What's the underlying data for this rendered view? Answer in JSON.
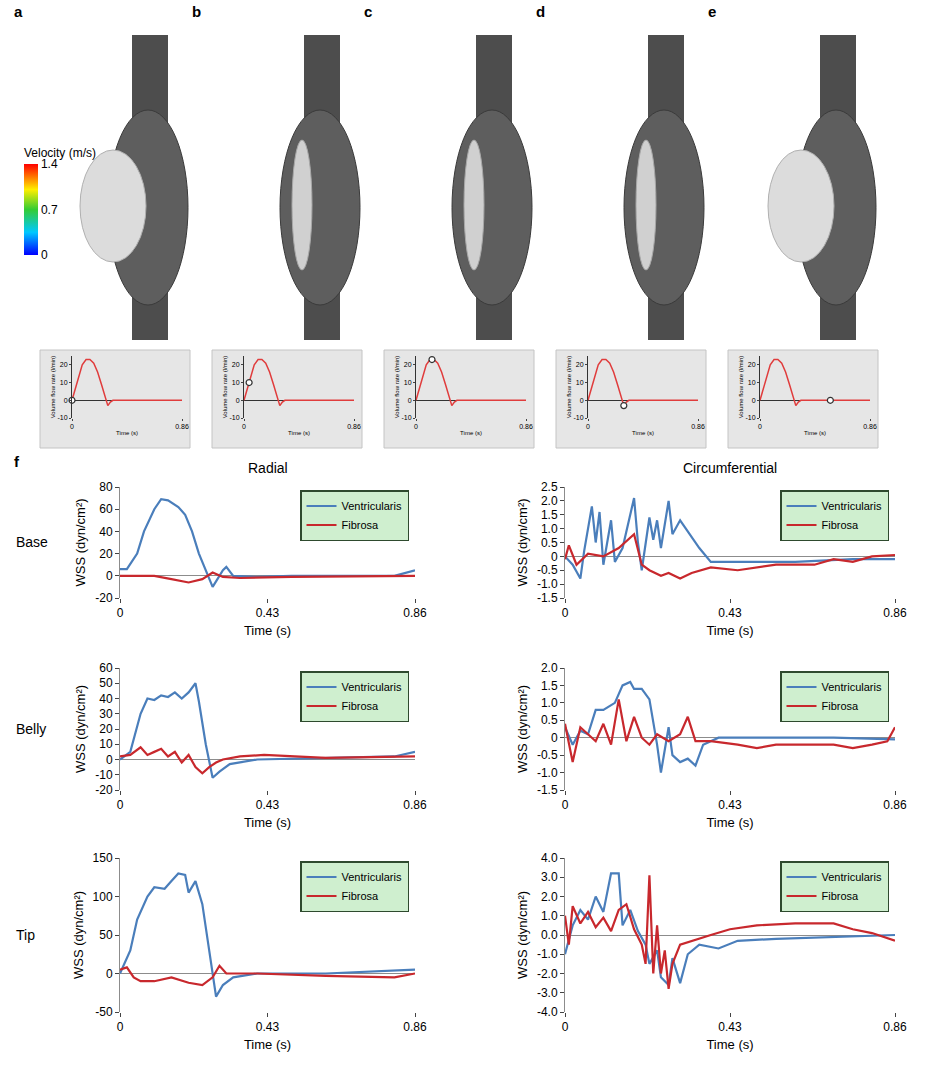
{
  "panel_labels": [
    "a",
    "b",
    "c",
    "d",
    "e",
    "f"
  ],
  "velocity_colorbar": {
    "title": "Velocity (m/s)",
    "range": [
      0,
      1.4
    ],
    "ticks": [
      0,
      0.7,
      1.4
    ]
  },
  "chart_data": [
    {
      "type": "line",
      "x_label": "Time (s)",
      "y_label": "Volume flow rate (l/min)",
      "xlim": [
        0,
        0.86
      ],
      "xticks": [
        0,
        0.86
      ],
      "ylim": [
        -10,
        25
      ],
      "yticks": [
        -10,
        0,
        10,
        20
      ],
      "grid": false,
      "series": [
        {
          "color": "#e03c3c",
          "x": [
            0,
            0.02,
            0.05,
            0.08,
            0.11,
            0.14,
            0.17,
            0.2,
            0.23,
            0.26,
            0.28,
            0.3,
            0.32,
            0.86
          ],
          "values": [
            0,
            5,
            13,
            20,
            23,
            23,
            21,
            16,
            9,
            2,
            -3,
            -1,
            0,
            0
          ]
        }
      ],
      "marker_point": {
        "x": 0,
        "value": 0
      }
    },
    {
      "type": "line",
      "x_label": "Time (s)",
      "y_label": "Volume flow rate (l/min)",
      "xlim": [
        0,
        0.86
      ],
      "xticks": [
        0,
        0.86
      ],
      "ylim": [
        -10,
        25
      ],
      "yticks": [
        -10,
        0,
        10,
        20
      ],
      "grid": false,
      "series": [
        {
          "color": "#e03c3c",
          "x": [
            0,
            0.02,
            0.05,
            0.08,
            0.11,
            0.14,
            0.17,
            0.2,
            0.23,
            0.26,
            0.28,
            0.3,
            0.32,
            0.86
          ],
          "values": [
            0,
            5,
            13,
            20,
            23,
            23,
            21,
            16,
            9,
            2,
            -3,
            -1,
            0,
            0
          ]
        }
      ],
      "marker_point": {
        "x": 0.04,
        "value": 10
      }
    },
    {
      "type": "line",
      "x_label": "Time (s)",
      "y_label": "Volume flow rate (l/min)",
      "xlim": [
        0,
        0.86
      ],
      "xticks": [
        0,
        0.86
      ],
      "ylim": [
        -10,
        25
      ],
      "yticks": [
        -10,
        0,
        10,
        20
      ],
      "grid": false,
      "series": [
        {
          "color": "#e03c3c",
          "x": [
            0,
            0.02,
            0.05,
            0.08,
            0.11,
            0.14,
            0.17,
            0.2,
            0.23,
            0.26,
            0.28,
            0.3,
            0.32,
            0.86
          ],
          "values": [
            0,
            5,
            13,
            20,
            23,
            23,
            21,
            16,
            9,
            2,
            -3,
            -1,
            0,
            0
          ]
        }
      ],
      "marker_point": {
        "x": 0.125,
        "value": 23
      }
    },
    {
      "type": "line",
      "x_label": "Time (s)",
      "y_label": "Volume flow rate (l/min)",
      "xlim": [
        0,
        0.86
      ],
      "xticks": [
        0,
        0.86
      ],
      "ylim": [
        -10,
        25
      ],
      "yticks": [
        -10,
        0,
        10,
        20
      ],
      "grid": false,
      "series": [
        {
          "color": "#e03c3c",
          "x": [
            0,
            0.02,
            0.05,
            0.08,
            0.11,
            0.14,
            0.17,
            0.2,
            0.23,
            0.26,
            0.28,
            0.3,
            0.32,
            0.86
          ],
          "values": [
            0,
            5,
            13,
            20,
            23,
            23,
            21,
            16,
            9,
            2,
            -3,
            -1,
            0,
            0
          ]
        }
      ],
      "marker_point": {
        "x": 0.28,
        "value": -3
      }
    },
    {
      "type": "line",
      "x_label": "Time (s)",
      "y_label": "Volume flow rate (l/min)",
      "xlim": [
        0,
        0.86
      ],
      "xticks": [
        0,
        0.86
      ],
      "ylim": [
        -10,
        25
      ],
      "yticks": [
        -10,
        0,
        10,
        20
      ],
      "grid": false,
      "series": [
        {
          "color": "#e03c3c",
          "x": [
            0,
            0.02,
            0.05,
            0.08,
            0.11,
            0.14,
            0.17,
            0.2,
            0.23,
            0.26,
            0.28,
            0.3,
            0.32,
            0.86
          ],
          "values": [
            0,
            5,
            13,
            20,
            23,
            23,
            21,
            16,
            9,
            2,
            -3,
            -1,
            0,
            0
          ]
        }
      ],
      "marker_point": {
        "x": 0.55,
        "value": 0
      }
    },
    {
      "type": "line",
      "title": "Radial",
      "row_label": "Base",
      "x_label": "Time (s)",
      "y_label": "WSS (dyn/cm²)",
      "xlim": [
        0,
        0.86
      ],
      "xticks": [
        0,
        0.43,
        0.86
      ],
      "ylim": [
        -20,
        80
      ],
      "yticks": [
        -20,
        0,
        20,
        40,
        60,
        80
      ],
      "grid": false,
      "legend": "upper right",
      "series": [
        {
          "name": "Ventricularis",
          "color": "#4a7ebb",
          "x": [
            0,
            0.02,
            0.05,
            0.07,
            0.1,
            0.12,
            0.14,
            0.17,
            0.19,
            0.21,
            0.23,
            0.25,
            0.27,
            0.28,
            0.3,
            0.31,
            0.33,
            0.4,
            0.5,
            0.8,
            0.86
          ],
          "values": [
            6,
            6,
            20,
            40,
            60,
            69,
            68,
            62,
            55,
            40,
            20,
            5,
            -10,
            -5,
            5,
            8,
            0,
            -1,
            0,
            0,
            5
          ]
        },
        {
          "name": "Fibrosa",
          "color": "#c8282d",
          "x": [
            0,
            0.1,
            0.15,
            0.2,
            0.24,
            0.27,
            0.3,
            0.35,
            0.5,
            0.86
          ],
          "values": [
            0,
            0,
            -3,
            -6,
            -3,
            3,
            -1,
            -2,
            -1,
            0
          ]
        }
      ]
    },
    {
      "type": "line",
      "title": "Circumferential",
      "x_label": "Time (s)",
      "y_label": "WSS (dyn/cm²)",
      "xlim": [
        0,
        0.86
      ],
      "xticks": [
        0,
        0.43,
        0.86
      ],
      "ylim": [
        -1.5,
        2.5
      ],
      "yticks": [
        -1.5,
        {
          "value": -1,
          "label": "-1.0"
        },
        -0.5,
        0,
        0.5,
        {
          "value": 1,
          "label": "1.0"
        },
        1.5,
        {
          "value": 2,
          "label": "2.0"
        },
        2.5
      ],
      "grid": false,
      "legend": "upper right",
      "series": [
        {
          "name": "Ventricularis",
          "color": "#4a7ebb",
          "x": [
            0,
            0.02,
            0.04,
            0.05,
            0.07,
            0.08,
            0.09,
            0.1,
            0.12,
            0.13,
            0.15,
            0.17,
            0.18,
            0.19,
            0.2,
            0.22,
            0.23,
            0.24,
            0.25,
            0.27,
            0.28,
            0.3,
            0.32,
            0.35,
            0.38,
            0.45,
            0.6,
            0.75,
            0.86
          ],
          "values": [
            0,
            -0.3,
            -0.8,
            0.2,
            1.8,
            0.5,
            1.6,
            -0.3,
            1.3,
            -0.2,
            0.3,
            1.5,
            2.1,
            0.5,
            -0.5,
            1.4,
            0.6,
            1.3,
            0.3,
            2.0,
            0.8,
            1.3,
            0.9,
            0.3,
            -0.2,
            -0.2,
            -0.2,
            -0.1,
            -0.1
          ]
        },
        {
          "name": "Fibrosa",
          "color": "#c8282d",
          "x": [
            0,
            0.01,
            0.03,
            0.06,
            0.1,
            0.14,
            0.18,
            0.2,
            0.22,
            0.25,
            0.27,
            0.3,
            0.33,
            0.38,
            0.45,
            0.5,
            0.55,
            0.65,
            0.7,
            0.75,
            0.8,
            0.86
          ],
          "values": [
            -0.1,
            0.4,
            -0.3,
            0.1,
            0.0,
            0.3,
            0.8,
            -0.3,
            -0.5,
            -0.7,
            -0.6,
            -0.8,
            -0.6,
            -0.4,
            -0.5,
            -0.4,
            -0.3,
            -0.3,
            -0.1,
            -0.2,
            0.0,
            0.05
          ]
        }
      ]
    },
    {
      "type": "line",
      "row_label": "Belly",
      "x_label": "Time (s)",
      "y_label": "WSS (dyn/cm²)",
      "xlim": [
        0,
        0.86
      ],
      "xticks": [
        0,
        0.43,
        0.86
      ],
      "ylim": [
        -20,
        60
      ],
      "yticks": [
        -20,
        -10,
        0,
        10,
        20,
        30,
        40,
        50,
        60
      ],
      "grid": false,
      "legend": "upper right",
      "series": [
        {
          "name": "Ventricularis",
          "color": "#4a7ebb",
          "x": [
            0,
            0.03,
            0.06,
            0.08,
            0.1,
            0.12,
            0.14,
            0.16,
            0.18,
            0.2,
            0.22,
            0.23,
            0.25,
            0.27,
            0.29,
            0.32,
            0.4,
            0.6,
            0.8,
            0.86
          ],
          "values": [
            0,
            5,
            30,
            40,
            39,
            42,
            41,
            44,
            40,
            44,
            50,
            38,
            10,
            -12,
            -8,
            -3,
            0,
            1,
            2,
            5
          ]
        },
        {
          "name": "Fibrosa",
          "color": "#c8282d",
          "x": [
            0,
            0.03,
            0.06,
            0.08,
            0.1,
            0.12,
            0.14,
            0.16,
            0.18,
            0.2,
            0.22,
            0.24,
            0.26,
            0.28,
            0.3,
            0.35,
            0.42,
            0.5,
            0.6,
            0.86
          ],
          "values": [
            2,
            3,
            8,
            3,
            5,
            7,
            2,
            5,
            -2,
            3,
            -5,
            -9,
            -5,
            -2,
            0,
            2,
            3,
            2,
            1,
            2
          ]
        }
      ]
    },
    {
      "type": "line",
      "x_label": "Time (s)",
      "y_label": "WSS (dyn/cm²)",
      "xlim": [
        0,
        0.86
      ],
      "xticks": [
        0,
        0.43,
        0.86
      ],
      "ylim": [
        -1.5,
        2
      ],
      "yticks": [
        -1.5,
        {
          "value": -1,
          "label": "-1.0"
        },
        -0.5,
        0,
        0.5,
        {
          "value": 1,
          "label": "1.0"
        },
        1.5,
        {
          "value": 2,
          "label": "2.0"
        }
      ],
      "grid": false,
      "legend": "upper right",
      "series": [
        {
          "name": "Ventricularis",
          "color": "#4a7ebb",
          "x": [
            0,
            0.02,
            0.04,
            0.06,
            0.08,
            0.1,
            0.13,
            0.15,
            0.17,
            0.18,
            0.2,
            0.22,
            0.24,
            0.25,
            0.27,
            0.28,
            0.3,
            0.32,
            0.34,
            0.36,
            0.4,
            0.5,
            0.7,
            0.86
          ],
          "values": [
            0.3,
            -0.2,
            0.2,
            0.1,
            0.8,
            0.8,
            1.0,
            1.5,
            1.6,
            1.4,
            1.4,
            1.1,
            -0.2,
            -1.0,
            0.3,
            -0.5,
            -0.7,
            -0.6,
            -0.8,
            -0.2,
            0.0,
            0.0,
            0.0,
            -0.05
          ]
        },
        {
          "name": "Fibrosa",
          "color": "#c8282d",
          "x": [
            0,
            0.02,
            0.04,
            0.06,
            0.08,
            0.1,
            0.12,
            0.14,
            0.16,
            0.18,
            0.2,
            0.22,
            0.24,
            0.27,
            0.3,
            0.32,
            0.34,
            0.38,
            0.45,
            0.5,
            0.55,
            0.7,
            0.75,
            0.8,
            0.84,
            0.86
          ],
          "values": [
            0.4,
            -0.7,
            0.3,
            0.1,
            -0.1,
            0.4,
            -0.2,
            1.1,
            -0.1,
            0.6,
            0.0,
            -0.2,
            0.1,
            -0.1,
            0.1,
            0.6,
            -0.1,
            -0.1,
            -0.2,
            -0.3,
            -0.2,
            -0.2,
            -0.3,
            -0.2,
            -0.1,
            0.3
          ]
        }
      ]
    },
    {
      "type": "line",
      "row_label": "Tip",
      "x_label": "Time (s)",
      "y_label": "WSS (dyn/cm²)",
      "xlim": [
        0,
        0.86
      ],
      "xticks": [
        0,
        0.43,
        0.86
      ],
      "ylim": [
        -50,
        150
      ],
      "yticks": [
        -50,
        0,
        50,
        100,
        150
      ],
      "grid": false,
      "legend": "upper right",
      "series": [
        {
          "name": "Ventricularis",
          "color": "#4a7ebb",
          "x": [
            0,
            0.03,
            0.05,
            0.08,
            0.1,
            0.13,
            0.15,
            0.17,
            0.19,
            0.2,
            0.22,
            0.24,
            0.26,
            0.28,
            0.3,
            0.33,
            0.4,
            0.6,
            0.86
          ],
          "values": [
            0,
            30,
            70,
            100,
            112,
            110,
            120,
            130,
            128,
            105,
            120,
            90,
            30,
            -30,
            -15,
            -5,
            0,
            0,
            5
          ]
        },
        {
          "name": "Fibrosa",
          "color": "#c8282d",
          "x": [
            0,
            0.02,
            0.04,
            0.06,
            0.1,
            0.15,
            0.2,
            0.24,
            0.27,
            0.29,
            0.31,
            0.4,
            0.6,
            0.8,
            0.86
          ],
          "values": [
            5,
            8,
            -5,
            -10,
            -10,
            -5,
            -12,
            -15,
            -5,
            10,
            0,
            0,
            -3,
            -5,
            0
          ]
        }
      ]
    },
    {
      "type": "line",
      "x_label": "Time (s)",
      "y_label": "WSS (dyn/cm²)",
      "xlim": [
        0,
        0.86
      ],
      "xticks": [
        0,
        0.43,
        0.86
      ],
      "ylim": [
        -4,
        4
      ],
      "yticks": [
        {
          "value": -4,
          "label": "-4.0"
        },
        {
          "value": -3,
          "label": "-3.0"
        },
        {
          "value": -2,
          "label": "-2.0"
        },
        {
          "value": -1,
          "label": "-1.0"
        },
        {
          "value": 0,
          "label": "0.0"
        },
        {
          "value": 1,
          "label": "1.0"
        },
        {
          "value": 2,
          "label": "2.0"
        },
        {
          "value": 3,
          "label": "3.0"
        },
        {
          "value": 4,
          "label": "4.0"
        }
      ],
      "grid": false,
      "legend": "upper right",
      "series": [
        {
          "name": "Ventricularis",
          "color": "#4a7ebb",
          "x": [
            0,
            0.02,
            0.04,
            0.06,
            0.08,
            0.1,
            0.12,
            0.14,
            0.15,
            0.17,
            0.19,
            0.21,
            0.22,
            0.24,
            0.25,
            0.27,
            0.28,
            0.3,
            0.32,
            0.35,
            0.4,
            0.45,
            0.55,
            0.7,
            0.86
          ],
          "values": [
            -1.0,
            0.5,
            1.3,
            0.8,
            2.0,
            1.2,
            3.2,
            3.2,
            0.5,
            1.3,
            0.2,
            -0.5,
            -1.5,
            -0.8,
            -2.2,
            -2.6,
            -1.2,
            -2.5,
            -1.0,
            -0.5,
            -0.7,
            -0.3,
            -0.2,
            -0.1,
            0
          ]
        },
        {
          "name": "Fibrosa",
          "color": "#c8282d",
          "x": [
            0,
            0.01,
            0.02,
            0.04,
            0.06,
            0.08,
            0.1,
            0.12,
            0.14,
            0.16,
            0.18,
            0.2,
            0.21,
            0.22,
            0.23,
            0.24,
            0.25,
            0.26,
            0.27,
            0.28,
            0.3,
            0.33,
            0.38,
            0.43,
            0.5,
            0.6,
            0.7,
            0.75,
            0.8,
            0.86
          ],
          "values": [
            1.0,
            -0.5,
            1.5,
            0.6,
            1.2,
            0.4,
            0.9,
            0.2,
            1.3,
            1.6,
            0.3,
            -0.5,
            -1.5,
            3.1,
            -2.0,
            0.5,
            -2.0,
            -0.8,
            -2.8,
            -1.5,
            -0.5,
            -0.3,
            0.0,
            0.3,
            0.5,
            0.6,
            0.6,
            0.3,
            0.1,
            -0.3
          ]
        }
      ]
    }
  ]
}
